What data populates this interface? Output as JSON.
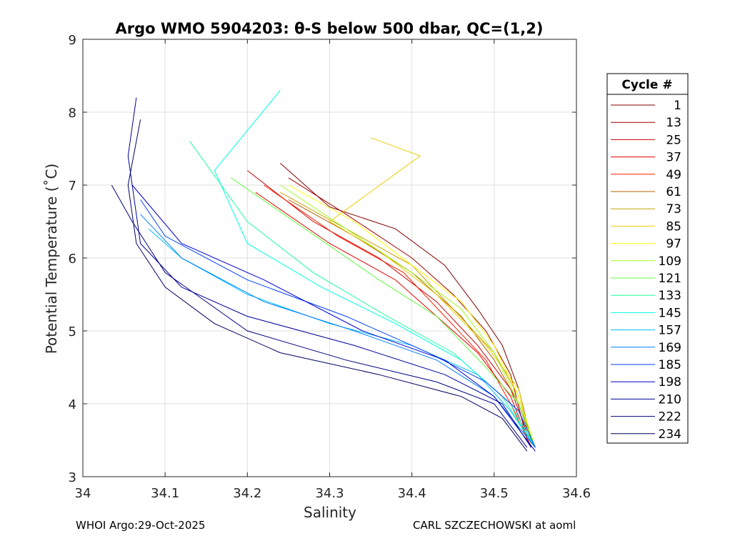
{
  "chart_data": {
    "type": "line",
    "title": "Argo WMO 5904203: θ-S below 500 dbar,  QC=(1,2)",
    "xlabel": "Salinity",
    "ylabel": "Potential Temperature (˚C)",
    "xlim": [
      34.0,
      34.6
    ],
    "ylim": [
      3,
      9
    ],
    "xticks": [
      "34",
      "34.1",
      "34.2",
      "34.3",
      "34.4",
      "34.5",
      "34.6"
    ],
    "yticks": [
      "3",
      "4",
      "5",
      "6",
      "7",
      "8",
      "9"
    ],
    "grid": true,
    "legend_title": "Cycle #",
    "legend_position": "outside-right",
    "legend": [
      {
        "label": "1",
        "color": "#800000"
      },
      {
        "label": "13",
        "color": "#a40000"
      },
      {
        "label": "25",
        "color": "#c80000"
      },
      {
        "label": "37",
        "color": "#e80000"
      },
      {
        "label": "49",
        "color": "#ff2000"
      },
      {
        "label": "61",
        "color": "#b86000"
      },
      {
        "label": "73",
        "color": "#c8a000"
      },
      {
        "label": "85",
        "color": "#e8d000"
      },
      {
        "label": "97",
        "color": "#ffff00"
      },
      {
        "label": "109",
        "color": "#a0ff20"
      },
      {
        "label": "121",
        "color": "#60ff40"
      },
      {
        "label": "133",
        "color": "#20ffa0"
      },
      {
        "label": "145",
        "color": "#00ffe0"
      },
      {
        "label": "157",
        "color": "#00c0ff"
      },
      {
        "label": "169",
        "color": "#0080ff"
      },
      {
        "label": "185",
        "color": "#0040ff"
      },
      {
        "label": "198",
        "color": "#0000d0"
      },
      {
        "label": "210",
        "color": "#00009c"
      },
      {
        "label": "222",
        "color": "#000080"
      },
      {
        "label": "234",
        "color": "#000060"
      }
    ],
    "series": [
      {
        "name": "1",
        "color": "#800000",
        "x": [
          34.24,
          34.3,
          34.38,
          34.44,
          34.48,
          34.51,
          34.53,
          34.545
        ],
        "y": [
          7.3,
          6.7,
          6.4,
          5.9,
          5.3,
          4.8,
          4.2,
          3.5
        ]
      },
      {
        "name": "13",
        "color": "#a40000",
        "x": [
          34.25,
          34.32,
          34.4,
          34.45,
          34.49,
          34.52,
          34.54
        ],
        "y": [
          7.1,
          6.6,
          6.0,
          5.5,
          5.0,
          4.4,
          3.5
        ]
      },
      {
        "name": "25",
        "color": "#c80000",
        "x": [
          34.2,
          34.28,
          34.36,
          34.43,
          34.48,
          34.52,
          34.545
        ],
        "y": [
          7.2,
          6.5,
          6.0,
          5.4,
          4.8,
          4.2,
          3.45
        ]
      },
      {
        "name": "37",
        "color": "#e80000",
        "x": [
          34.21,
          34.3,
          34.38,
          34.43,
          34.48,
          34.52,
          34.545
        ],
        "y": [
          6.9,
          6.2,
          5.7,
          5.2,
          4.7,
          4.1,
          3.4
        ]
      },
      {
        "name": "49",
        "color": "#ff2000",
        "x": [
          34.22,
          34.31,
          34.39,
          34.44,
          34.49,
          34.52,
          34.545
        ],
        "y": [
          7.0,
          6.3,
          5.8,
          5.2,
          4.6,
          4.0,
          3.4
        ]
      },
      {
        "name": "61",
        "color": "#b86000",
        "x": [
          34.25,
          34.33,
          34.4,
          34.46,
          34.5,
          34.53,
          34.545
        ],
        "y": [
          6.8,
          6.3,
          5.8,
          5.2,
          4.6,
          4.0,
          3.5
        ]
      },
      {
        "name": "73",
        "color": "#c8a000",
        "x": [
          34.24,
          34.32,
          34.4,
          34.45,
          34.5,
          34.53,
          34.545
        ],
        "y": [
          6.9,
          6.4,
          5.9,
          5.3,
          4.7,
          4.1,
          3.5
        ]
      },
      {
        "name": "85",
        "color": "#e8d000",
        "x": [
          34.35,
          34.41,
          34.3,
          34.36,
          34.43,
          34.49,
          34.53,
          34.545
        ],
        "y": [
          7.65,
          7.4,
          6.5,
          6.1,
          5.5,
          4.8,
          4.2,
          3.45
        ]
      },
      {
        "name": "97",
        "color": "#ffff00",
        "x": [
          34.25,
          34.33,
          34.4,
          34.46,
          34.5,
          34.53,
          34.55
        ],
        "y": [
          7.0,
          6.5,
          5.9,
          5.4,
          4.8,
          4.1,
          3.4
        ]
      },
      {
        "name": "109",
        "color": "#a0ff20",
        "x": [
          34.24,
          34.32,
          34.4,
          34.46,
          34.5,
          34.53,
          34.55
        ],
        "y": [
          7.0,
          6.4,
          5.8,
          5.3,
          4.7,
          4.0,
          3.4
        ]
      },
      {
        "name": "121",
        "color": "#60ff40",
        "x": [
          34.18,
          34.27,
          34.36,
          34.43,
          34.49,
          34.53,
          34.55
        ],
        "y": [
          7.1,
          6.4,
          5.7,
          5.2,
          4.5,
          4.0,
          3.4
        ]
      },
      {
        "name": "133",
        "color": "#20ffa0",
        "x": [
          34.13,
          34.2,
          34.28,
          34.37,
          34.45,
          34.51,
          34.55
        ],
        "y": [
          7.6,
          6.5,
          5.8,
          5.2,
          4.7,
          4.1,
          3.4
        ]
      },
      {
        "name": "145",
        "color": "#00ffe0",
        "x": [
          34.24,
          34.16,
          34.2,
          34.29,
          34.38,
          34.46,
          34.52,
          34.55
        ],
        "y": [
          8.3,
          7.2,
          6.2,
          5.6,
          5.1,
          4.6,
          4.0,
          3.4
        ]
      },
      {
        "name": "157",
        "color": "#00c0ff",
        "x": [
          34.08,
          34.12,
          34.2,
          34.3,
          34.4,
          34.48,
          34.52,
          34.55
        ],
        "y": [
          6.4,
          6.0,
          5.5,
          5.1,
          4.8,
          4.4,
          3.9,
          3.4
        ]
      },
      {
        "name": "169",
        "color": "#0080ff",
        "x": [
          34.07,
          34.12,
          34.22,
          34.33,
          34.43,
          34.5,
          34.55
        ],
        "y": [
          6.6,
          6.0,
          5.4,
          5.0,
          4.6,
          4.1,
          3.4
        ]
      },
      {
        "name": "185",
        "color": "#0040ff",
        "x": [
          34.07,
          34.1,
          34.2,
          34.32,
          34.42,
          34.49,
          34.53,
          34.55
        ],
        "y": [
          6.8,
          6.3,
          5.7,
          5.2,
          4.7,
          4.3,
          3.9,
          3.4
        ]
      },
      {
        "name": "198",
        "color": "#0000d0",
        "x": [
          34.06,
          34.12,
          34.22,
          34.34,
          34.44,
          34.5,
          34.55
        ],
        "y": [
          7.0,
          6.2,
          5.7,
          5.0,
          4.6,
          4.1,
          3.35
        ]
      },
      {
        "name": "210",
        "color": "#00009c",
        "x": [
          34.065,
          34.055,
          34.07,
          34.12,
          34.2,
          34.33,
          34.44,
          34.51,
          34.545
        ],
        "y": [
          8.2,
          7.4,
          6.2,
          5.6,
          5.2,
          4.8,
          4.4,
          4.0,
          3.4
        ]
      },
      {
        "name": "222",
        "color": "#000080",
        "x": [
          34.035,
          34.06,
          34.1,
          34.2,
          34.32,
          34.43,
          34.5,
          34.54
        ],
        "y": [
          7.0,
          6.5,
          5.8,
          5.0,
          4.6,
          4.3,
          4.0,
          3.4
        ]
      },
      {
        "name": "234",
        "color": "#000060",
        "x": [
          34.07,
          34.055,
          34.065,
          34.1,
          34.16,
          34.24,
          34.36,
          34.46,
          34.51,
          34.54
        ],
        "y": [
          7.9,
          7.0,
          6.2,
          5.6,
          5.1,
          4.7,
          4.4,
          4.1,
          3.8,
          3.35
        ]
      }
    ]
  },
  "footer": {
    "left": "WHOI Argo:29-Oct-2025",
    "right": "CARL SZCZECHOWSKI at aoml"
  }
}
